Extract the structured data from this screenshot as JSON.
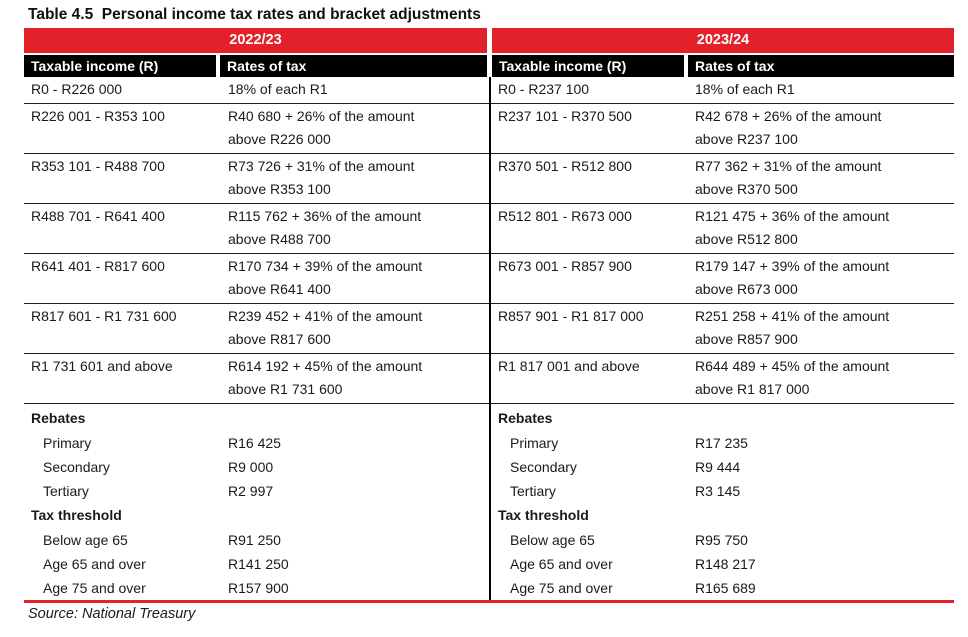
{
  "title": "Table 4.5  Personal income tax rates and bracket adjustments",
  "source": "Source: National Treasury",
  "colors": {
    "banner_red": "#E3212A",
    "header_black": "#000000",
    "text": "#1a1a1a"
  },
  "column_headers": {
    "taxable_income": "Taxable income (R)",
    "rates_of_tax": "Rates of tax"
  },
  "section_labels": {
    "rebates": "Rebates",
    "tax_threshold": "Tax threshold"
  },
  "years": [
    {
      "label": "2022/23",
      "brackets": [
        {
          "income": "R0 - R226 000",
          "rate1": "18% of each R1",
          "rate2": ""
        },
        {
          "income": "R226 001 - R353 100",
          "rate1": "R40 680 + 26% of the amount",
          "rate2": "above R226 000"
        },
        {
          "income": "R353 101 - R488 700",
          "rate1": "R73 726 + 31% of the amount",
          "rate2": "above R353 100"
        },
        {
          "income": "R488 701 - R641 400",
          "rate1": "R115 762 + 36% of the amount",
          "rate2": "above R488 700"
        },
        {
          "income": "R641 401 - R817 600",
          "rate1": "R170 734 + 39% of the amount",
          "rate2": "above R641 400"
        },
        {
          "income": "R817 601 - R1 731 600",
          "rate1": "R239 452 + 41% of the amount",
          "rate2": "above R817 600"
        },
        {
          "income": "R1 731 601 and above",
          "rate1": "R614 192 + 45% of the amount",
          "rate2": "above R1 731 600"
        }
      ],
      "rebates": [
        {
          "label": "Primary",
          "value": "R16 425"
        },
        {
          "label": "Secondary",
          "value": "R9 000"
        },
        {
          "label": "Tertiary",
          "value": "R2 997"
        }
      ],
      "thresholds": [
        {
          "label": "Below age 65",
          "value": "R91 250"
        },
        {
          "label": "Age 65 and over",
          "value": "R141 250"
        },
        {
          "label": "Age 75 and over",
          "value": "R157 900"
        }
      ]
    },
    {
      "label": "2023/24",
      "brackets": [
        {
          "income": "R0 - R237 100",
          "rate1": "18% of each R1",
          "rate2": ""
        },
        {
          "income": "R237 101 - R370 500",
          "rate1": "R42 678 + 26% of the amount",
          "rate2": "above R237 100"
        },
        {
          "income": "R370 501 - R512 800",
          "rate1": "R77 362 + 31% of the amount",
          "rate2": "above R370 500"
        },
        {
          "income": "R512 801 - R673 000",
          "rate1": "R121 475 + 36% of the amount",
          "rate2": "above R512 800"
        },
        {
          "income": "R673 001 - R857 900",
          "rate1": "R179 147 + 39% of the amount",
          "rate2": "above R673 000"
        },
        {
          "income": "R857 901 - R1 817 000",
          "rate1": "R251 258 + 41% of the amount",
          "rate2": "above R857 900"
        },
        {
          "income": "R1 817 001 and above",
          "rate1": "R644 489 + 45% of the amount",
          "rate2": "above R1 817 000"
        }
      ],
      "rebates": [
        {
          "label": "Primary",
          "value": "R17 235"
        },
        {
          "label": "Secondary",
          "value": "R9 444"
        },
        {
          "label": "Tertiary",
          "value": "R3 145"
        }
      ],
      "thresholds": [
        {
          "label": "Below age 65",
          "value": "R95 750"
        },
        {
          "label": "Age 65 and over",
          "value": "R148 217"
        },
        {
          "label": "Age 75 and over",
          "value": "R165 689"
        }
      ]
    }
  ]
}
